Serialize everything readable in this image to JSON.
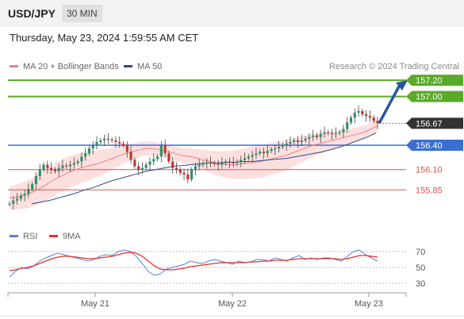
{
  "header": {
    "symbol": "USD/JPY",
    "timeframe": "30 MIN"
  },
  "timestamp": "Thursday, May 23, 2024 1:59:55 AM CET",
  "legend": {
    "ma20": {
      "label": "MA 20 + Bollinger Bands",
      "color": "#f08080"
    },
    "ma50": {
      "label": "MA 50",
      "color": "#2a4d8f"
    }
  },
  "credit": "Research © 2024 Trading Central",
  "rsi_legend": {
    "rsi": {
      "label": "RSI",
      "color": "#5b7fd6"
    },
    "ma": {
      "label": "9MA",
      "color": "#e53030"
    }
  },
  "colors": {
    "resistance": "#5aaa2a",
    "pivot": "#3a6fd0",
    "support": "#e05050",
    "current": "#333333",
    "arrow": "#2a56a0",
    "candle": "#2f8f6a"
  },
  "chart_data": [
    {
      "type": "candlestick",
      "x_ticks": [
        "May 21",
        "May 22",
        "May 23"
      ],
      "price_levels": [
        {
          "label": "157.20",
          "value": 157.2,
          "kind": "resistance"
        },
        {
          "label": "157.00",
          "value": 157.0,
          "kind": "resistance"
        },
        {
          "label": "156.67",
          "value": 156.67,
          "kind": "current"
        },
        {
          "label": "156.40",
          "value": 156.4,
          "kind": "pivot"
        },
        {
          "label": "156.10",
          "value": 156.1,
          "kind": "support"
        },
        {
          "label": "155.85",
          "value": 155.85,
          "kind": "support"
        }
      ],
      "ylim": [
        155.55,
        157.25
      ],
      "price_path": [
        155.68,
        155.72,
        155.74,
        155.78,
        155.8,
        155.86,
        155.92,
        156.02,
        156.1,
        156.16,
        156.12,
        156.1,
        156.08,
        156.12,
        156.15,
        156.14,
        156.16,
        156.18,
        156.2,
        156.26,
        156.3,
        156.36,
        156.4,
        156.44,
        156.46,
        156.48,
        156.47,
        156.46,
        156.44,
        156.42,
        156.4,
        156.32,
        156.22,
        156.14,
        156.1,
        156.12,
        156.16,
        156.2,
        156.23,
        156.26,
        156.4,
        156.3,
        156.2,
        156.12,
        156.1,
        156.06,
        156.04,
        155.98,
        156.1,
        156.14,
        156.16,
        156.18,
        156.19,
        156.18,
        156.17,
        156.16,
        156.18,
        156.2,
        156.19,
        156.18,
        156.2,
        156.22,
        156.24,
        156.26,
        156.28,
        156.3,
        156.32,
        156.3,
        156.33,
        156.35,
        156.36,
        156.38,
        156.4,
        156.42,
        156.44,
        156.46,
        156.44,
        156.46,
        156.48,
        156.5,
        156.52,
        156.5,
        156.54,
        156.56,
        156.55,
        156.54,
        156.55,
        156.56,
        156.6,
        156.68,
        156.74,
        156.8,
        156.82,
        156.78,
        156.76,
        156.74,
        156.7,
        156.67
      ],
      "ma20_path": [
        155.75,
        155.76,
        155.78,
        155.8,
        155.84,
        155.88,
        155.93,
        155.98,
        156.02,
        156.06,
        156.09,
        156.12,
        156.14,
        156.16,
        156.18,
        156.21,
        156.24,
        156.27,
        156.3,
        156.32,
        156.34,
        156.36,
        156.36,
        156.35,
        156.33,
        156.31,
        156.29,
        156.27,
        156.26,
        156.24,
        156.22,
        156.2,
        156.18,
        156.17,
        156.16,
        156.16,
        156.17,
        156.18,
        156.19,
        156.2,
        156.22,
        156.24,
        156.26,
        156.28,
        156.31,
        156.34,
        156.37,
        156.4,
        156.42,
        156.44,
        156.46,
        156.48,
        156.5,
        156.52,
        156.54,
        156.56,
        156.6,
        156.64
      ],
      "ma50_path": [
        155.68,
        155.7,
        155.72,
        155.75,
        155.78,
        155.81,
        155.85,
        155.88,
        155.92,
        155.96,
        155.99,
        156.02,
        156.05,
        156.08,
        156.1,
        156.12,
        156.14,
        156.15,
        156.16,
        156.17,
        156.18,
        156.18,
        156.19,
        156.19,
        156.2,
        156.2,
        156.21,
        156.22,
        156.23,
        156.24,
        156.26,
        156.28,
        156.3,
        156.32,
        156.35,
        156.38,
        156.42,
        156.46,
        156.5,
        156.55
      ],
      "projection": {
        "from": 156.67,
        "to": 157.2
      }
    },
    {
      "type": "line",
      "title": "RSI",
      "y_ticks": [
        70,
        50,
        30
      ],
      "ylim": [
        22,
        82
      ],
      "series": [
        {
          "name": "RSI",
          "values": [
            38,
            45,
            50,
            48,
            52,
            58,
            62,
            65,
            68,
            66,
            64,
            62,
            60,
            58,
            60,
            64,
            66,
            65,
            70,
            72,
            70,
            64,
            55,
            45,
            40,
            42,
            48,
            50,
            52,
            54,
            58,
            56,
            55,
            58,
            60,
            58,
            56,
            54,
            58,
            56,
            57,
            60,
            60,
            58,
            62,
            60,
            58,
            62,
            65,
            60,
            62,
            60,
            62,
            62,
            60,
            58,
            64,
            70,
            72,
            66,
            62,
            58
          ]
        },
        {
          "name": "9MA",
          "values": [
            46,
            47,
            49,
            50,
            52,
            55,
            58,
            61,
            63,
            64,
            64,
            63,
            62,
            61,
            61,
            62,
            63,
            64,
            66,
            68,
            69,
            68,
            64,
            58,
            52,
            48,
            47,
            47,
            48,
            49,
            51,
            52,
            53,
            54,
            55,
            56,
            56,
            56,
            56,
            56,
            57,
            57,
            58,
            58,
            59,
            59,
            59,
            60,
            61,
            61,
            61,
            61,
            61,
            61,
            61,
            60,
            61,
            63,
            65,
            65,
            64,
            63
          ]
        }
      ]
    }
  ]
}
